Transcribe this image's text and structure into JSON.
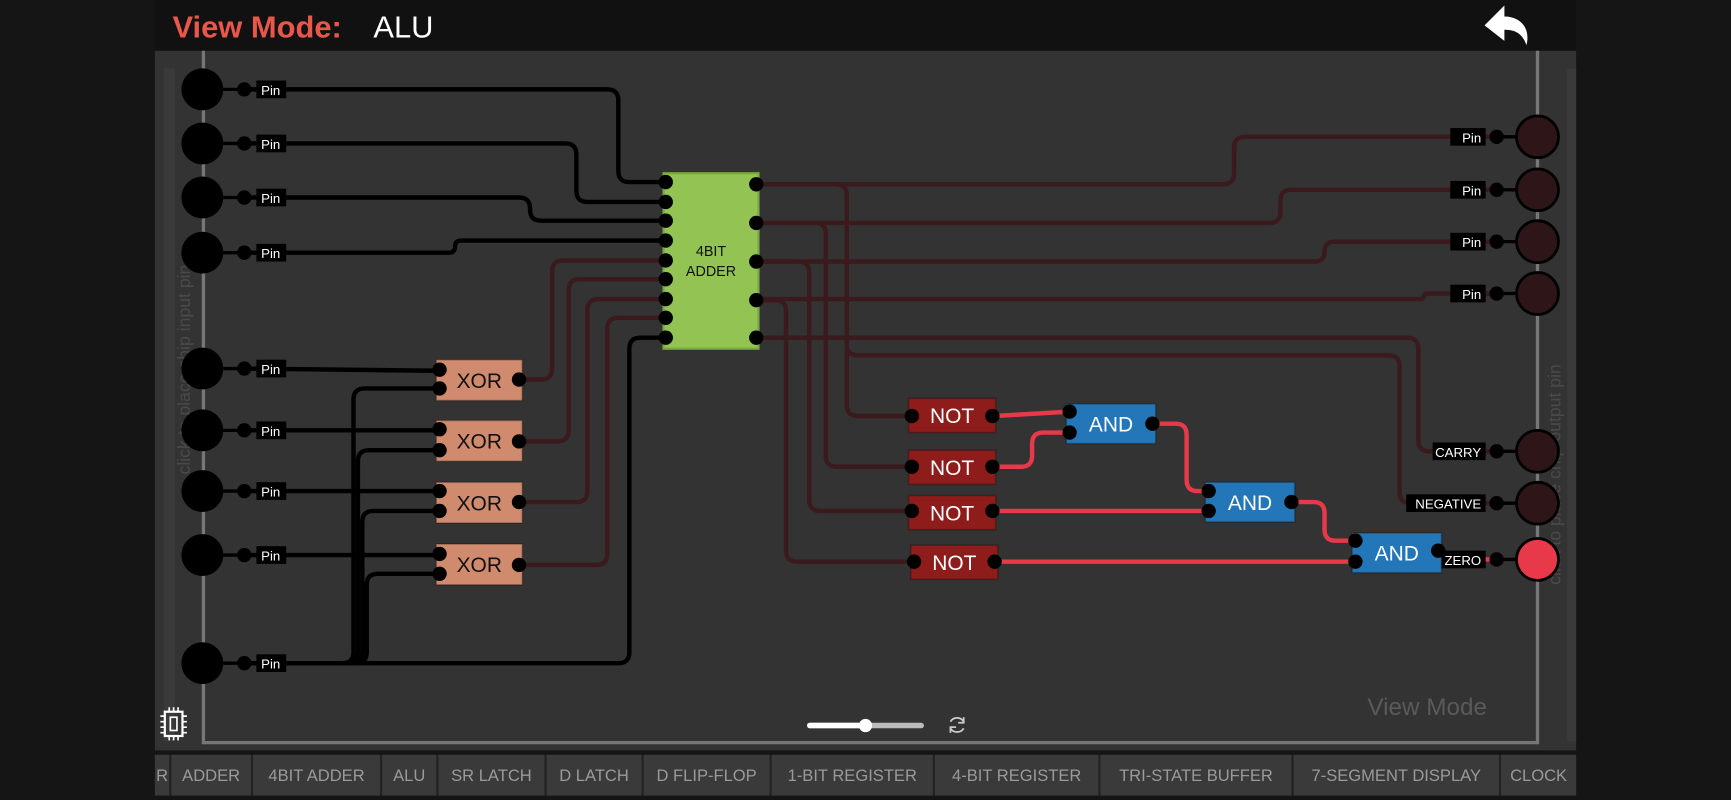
{
  "header": {
    "mode_label": "View Mode:",
    "mode_value": "ALU",
    "back_icon": "undo-arrow-icon"
  },
  "colors": {
    "accent": "#e8574a",
    "wire_off": "#3a1a1c",
    "wire_on": "#e8394a",
    "wire_input": "#000000",
    "adder": "#92c353",
    "xor": "#d08b6e",
    "not": "#8e1c1a",
    "and": "#2377b8",
    "pin_on": "#e8394a",
    "pin_off": "#2e1618"
  },
  "input_pins": [
    "Pin",
    "Pin",
    "Pin",
    "Pin",
    "Pin",
    "Pin",
    "Pin",
    "Pin",
    "Pin"
  ],
  "output_pins": [
    {
      "label": "Pin",
      "state": "off"
    },
    {
      "label": "Pin",
      "state": "off"
    },
    {
      "label": "Pin",
      "state": "off"
    },
    {
      "label": "Pin",
      "state": "off"
    },
    {
      "label": "CARRY",
      "state": "off"
    },
    {
      "label": "NEGATIVE",
      "state": "off"
    },
    {
      "label": "ZERO",
      "state": "on"
    }
  ],
  "adder": {
    "line1": "4BIT",
    "line2": "ADDER"
  },
  "xor_gates": [
    "XOR",
    "XOR",
    "XOR",
    "XOR"
  ],
  "not_gates": [
    "NOT",
    "NOT",
    "NOT",
    "NOT"
  ],
  "and_gates": [
    "AND",
    "AND",
    "AND"
  ],
  "hints": {
    "input": "click to place chip input pin",
    "output": "click to place chip output pin"
  },
  "watermark": "View Mode",
  "zoom_slider": {
    "value": 0.5
  },
  "tabs": [
    "R",
    "ADDER",
    "4BIT ADDER",
    "ALU",
    "SR LATCH",
    "D LATCH",
    "D FLIP-FLOP",
    "1-BIT REGISTER",
    "4-BIT REGISTER",
    "TRI-STATE BUFFER",
    "7-SEGMENT DISPLAY",
    "CLOCK"
  ]
}
